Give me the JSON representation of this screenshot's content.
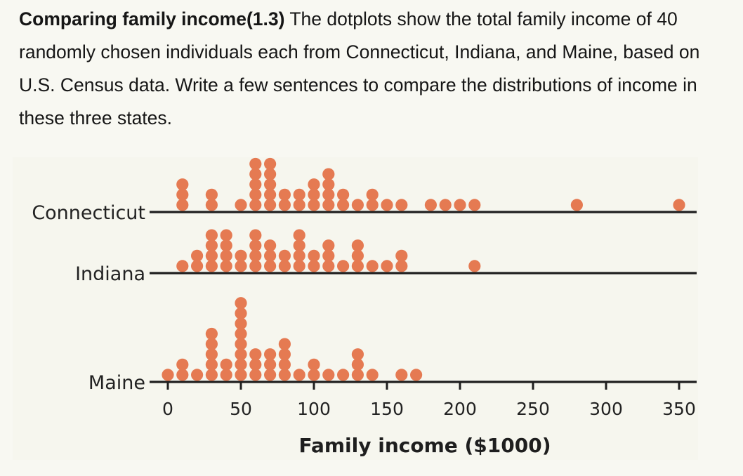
{
  "question": {
    "title": "Comparing family income(1.3)",
    "body": " The dotplots show the total family income of 40 randomly chosen individuals each from Connecticut, Indiana, and Maine, based on U.S. Census data. Write a few sentences to compare the distributions of income in these three states."
  },
  "chart_data": {
    "type": "dotplot",
    "title": "",
    "xlabel": "Family income ($1000)",
    "ylabel": "",
    "xlim": [
      0,
      350
    ],
    "xticks": [
      0,
      50,
      100,
      150,
      200,
      250,
      300,
      350
    ],
    "xtick_labels": [
      "0",
      "50",
      "100",
      "150",
      "200",
      "250",
      "300",
      "350"
    ],
    "grid": false,
    "dot_color": "#e57a52",
    "series": [
      {
        "name": "Connecticut",
        "x": [
          10,
          30,
          50,
          60,
          70,
          80,
          90,
          100,
          110,
          120,
          130,
          140,
          150,
          160,
          180,
          190,
          200,
          210,
          280,
          350
        ],
        "counts": [
          3,
          2,
          1,
          5,
          5,
          2,
          2,
          3,
          4,
          2,
          1,
          2,
          1,
          1,
          1,
          1,
          1,
          1,
          1,
          1
        ]
      },
      {
        "name": "Indiana",
        "x": [
          10,
          20,
          30,
          40,
          50,
          60,
          70,
          80,
          90,
          100,
          110,
          120,
          130,
          140,
          150,
          160,
          210
        ],
        "counts": [
          1,
          2,
          4,
          4,
          2,
          4,
          3,
          2,
          4,
          2,
          3,
          1,
          3,
          1,
          1,
          2,
          1
        ]
      },
      {
        "name": "Maine",
        "x": [
          0,
          10,
          20,
          30,
          40,
          50,
          60,
          70,
          80,
          90,
          100,
          110,
          120,
          130,
          140,
          160,
          170
        ],
        "counts": [
          1,
          2,
          1,
          5,
          2,
          8,
          3,
          3,
          4,
          1,
          2,
          1,
          1,
          3,
          1,
          1,
          1
        ]
      }
    ]
  }
}
